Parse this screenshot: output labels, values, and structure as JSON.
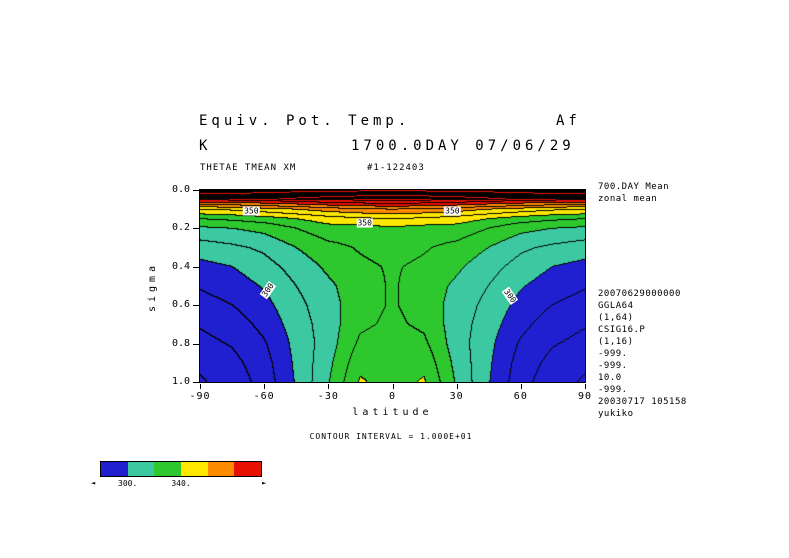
{
  "header": {
    "title": "Equiv. Pot. Temp.",
    "title_right": "Af",
    "units": "K",
    "subtitle": "1700.0DAY 07/06/29",
    "var_label": "THETAE TMEAN XM",
    "run_label": "#1-122403"
  },
  "annotations": {
    "right_top": [
      "700.DAY Mean",
      "zonal mean"
    ],
    "right_block": [
      "20070629000000",
      "GGLA64",
      "(1,64)",
      "CSIG16.P",
      "(1,16)",
      "-999.",
      "-999.",
      "10.0",
      "-999.",
      "20030717 105158",
      "yukiko"
    ]
  },
  "axes": {
    "x_label": "latitude",
    "x_ticks": [
      "-90",
      "-60",
      "-30",
      "0",
      "30",
      "60",
      "90"
    ],
    "y_label": "sigma",
    "y_ticks": [
      "0.0",
      "0.2",
      "0.4",
      "0.6",
      "0.8",
      "1.0"
    ]
  },
  "footer": {
    "contour_interval": "CONTOUR INTERVAL = 1.000E+01"
  },
  "colorbar": {
    "labels": [
      {
        "text": "300.",
        "boundary": 1
      },
      {
        "text": "340.",
        "boundary": 3
      }
    ],
    "left_arrow": "◄",
    "right_arrow": "►"
  },
  "chart_data": {
    "type": "heatmap",
    "title": "Equiv. Pot. Temp.",
    "units": "K",
    "time_label": "1700.0DAY 07/06/29",
    "xlabel": "latitude",
    "ylabel": "sigma",
    "xlim": [
      -90,
      90
    ],
    "ylim": [
      0.0,
      1.0
    ],
    "y_inverted": true,
    "grid": false,
    "contour_interval": 10,
    "fill_levels": [
      300,
      320,
      340,
      360,
      380
    ],
    "fill_colors": [
      "#2020d0",
      "#3cc8a0",
      "#2ec82e",
      "#ffe800",
      "#ff8c00",
      "#e81000"
    ],
    "line_color": "#000000",
    "x": {
      "name": "latitude",
      "values": [
        -90,
        -75,
        -60,
        -45,
        -30,
        -15,
        0,
        15,
        30,
        45,
        60,
        75,
        90
      ]
    },
    "y": {
      "name": "sigma",
      "values": [
        0.0,
        0.05,
        0.1,
        0.15,
        0.2,
        0.3,
        0.4,
        0.5,
        0.6,
        0.7,
        0.8,
        0.9,
        1.0
      ]
    },
    "values": [
      [
        476,
        476,
        476,
        477,
        477,
        478,
        478,
        478,
        477,
        477,
        476,
        476,
        476
      ],
      [
        391,
        392,
        394,
        397,
        400,
        402,
        404,
        402,
        400,
        397,
        394,
        392,
        391
      ],
      [
        350,
        352,
        356,
        360,
        365,
        368,
        370,
        368,
        365,
        360,
        356,
        352,
        350
      ],
      [
        330,
        332,
        335,
        340,
        345,
        348,
        350,
        348,
        345,
        340,
        335,
        332,
        330
      ],
      [
        318,
        320,
        323,
        330,
        336,
        336,
        338,
        336,
        336,
        330,
        323,
        320,
        318
      ],
      [
        305,
        308,
        312,
        320,
        327,
        331,
        334,
        331,
        327,
        320,
        312,
        308,
        305
      ],
      [
        297,
        300,
        306,
        314,
        322,
        328,
        331,
        328,
        322,
        314,
        306,
        300,
        297
      ],
      [
        291,
        295,
        301,
        310,
        318,
        326,
        331,
        326,
        318,
        310,
        301,
        295,
        291
      ],
      [
        286,
        290,
        297,
        307,
        316,
        326,
        331,
        326,
        316,
        307,
        297,
        290,
        286
      ],
      [
        281,
        285,
        293,
        305,
        315,
        328,
        332,
        328,
        315,
        305,
        293,
        285,
        281
      ],
      [
        277,
        281,
        289,
        303,
        315,
        332,
        335,
        332,
        315,
        303,
        289,
        281,
        277
      ],
      [
        272,
        277,
        286,
        302,
        317,
        337,
        338,
        337,
        317,
        302,
        286,
        277,
        272
      ],
      [
        269,
        274,
        284,
        301,
        319,
        341,
        336,
        341,
        319,
        301,
        284,
        274,
        269
      ]
    ],
    "contour_labels": [
      {
        "text": "350",
        "lat": -66,
        "sigma": 0.11,
        "rot": 0
      },
      {
        "text": "350",
        "lat": -13,
        "sigma": 0.17,
        "rot": 0
      },
      {
        "text": "350",
        "lat": 28,
        "sigma": 0.11,
        "rot": 0
      },
      {
        "text": "300",
        "lat": -58,
        "sigma": 0.52,
        "rot": -55
      },
      {
        "text": "300",
        "lat": 55,
        "sigma": 0.55,
        "rot": 55
      }
    ]
  }
}
